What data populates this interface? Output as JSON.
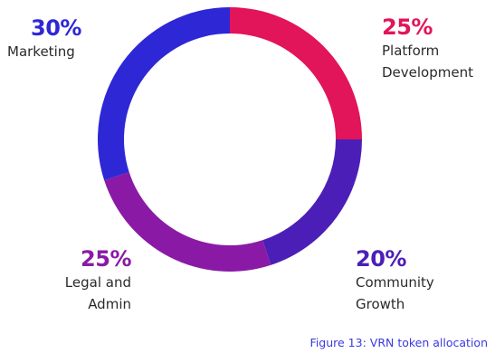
{
  "chart_data": {
    "type": "pie",
    "variant": "donut",
    "slices": [
      {
        "label": "Platform Development",
        "label_lines": [
          "Platform",
          "Development"
        ],
        "percent_text": "25%",
        "value": 25,
        "color": "#e2145a"
      },
      {
        "label": "Community Growth",
        "label_lines": [
          "Community",
          "Growth"
        ],
        "percent_text": "20%",
        "value": 20,
        "color": "#4b1fb7"
      },
      {
        "label": "Legal and Admin",
        "label_lines": [
          "Legal and",
          "Admin"
        ],
        "percent_text": "25%",
        "value": 25,
        "color": "#8a1aa6"
      },
      {
        "label": "Marketing",
        "label_lines": [
          "Marketing"
        ],
        "percent_text": "30%",
        "value": 30,
        "color": "#2e27d6"
      }
    ],
    "start": "top, clockwise"
  },
  "caption": "Figure 13: VRN token allocation"
}
